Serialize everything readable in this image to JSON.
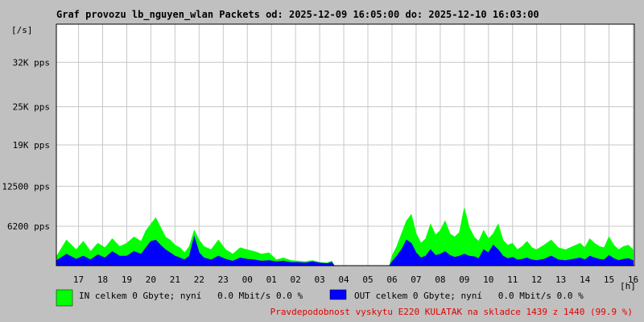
{
  "chart_data": {
    "type": "area",
    "title": "Graf provozu lb_nguyen_wlan Packets od: 2025-12-09 16:05:00 do: 2025-12-10 16:03:00",
    "ylabel": "[/s]",
    "xlabel": "[h]",
    "ylim": [
      0,
      38000
    ],
    "y_ticks": [
      {
        "value": 6200,
        "label": "6200 pps"
      },
      {
        "value": 12500,
        "label": "12500 pps"
      },
      {
        "value": 19000,
        "label": "19K pps"
      },
      {
        "value": 25000,
        "label": "25K pps"
      },
      {
        "value": 32000,
        "label": "32K pps"
      }
    ],
    "x_ticks": [
      {
        "value": 17,
        "label": "17"
      },
      {
        "value": 18,
        "label": "18"
      },
      {
        "value": 19,
        "label": "19"
      },
      {
        "value": 20,
        "label": "20"
      },
      {
        "value": 21,
        "label": "21"
      },
      {
        "value": 22,
        "label": "22"
      },
      {
        "value": 23,
        "label": "23"
      },
      {
        "value": 24,
        "label": "00"
      },
      {
        "value": 25,
        "label": "01"
      },
      {
        "value": 26,
        "label": "02"
      },
      {
        "value": 27,
        "label": "03"
      },
      {
        "value": 28,
        "label": "04"
      },
      {
        "value": 29,
        "label": "05"
      },
      {
        "value": 30,
        "label": "06"
      },
      {
        "value": 31,
        "label": "07"
      },
      {
        "value": 32,
        "label": "08"
      },
      {
        "value": 33,
        "label": "09"
      },
      {
        "value": 34,
        "label": "10"
      },
      {
        "value": 35,
        "label": "11"
      },
      {
        "value": 36,
        "label": "12"
      },
      {
        "value": 37,
        "label": "13"
      },
      {
        "value": 38,
        "label": "14"
      },
      {
        "value": 39,
        "label": "15"
      },
      {
        "value": 40,
        "label": "16"
      }
    ],
    "xlim": [
      16.08,
      40.05
    ],
    "grid": true,
    "legend_position": "bottom-left",
    "series": [
      {
        "name": "IN",
        "color": "#00ff00",
        "x": [
          16.1,
          16.5,
          16.9,
          17.2,
          17.5,
          17.8,
          18.1,
          18.4,
          18.7,
          19.0,
          19.3,
          19.6,
          19.8,
          20.0,
          20.2,
          20.4,
          20.6,
          20.8,
          21.0,
          21.2,
          21.4,
          21.6,
          21.8,
          22.0,
          22.2,
          22.5,
          22.8,
          23.1,
          23.4,
          23.7,
          24.0,
          24.3,
          24.6,
          24.9,
          25.2,
          25.5,
          25.8,
          26.1,
          26.4,
          26.7,
          27.0,
          27.3,
          27.5,
          27.6,
          29.9,
          30.0,
          30.2,
          30.4,
          30.6,
          30.8,
          31.0,
          31.2,
          31.4,
          31.6,
          31.8,
          32.0,
          32.2,
          32.4,
          32.6,
          32.8,
          33.0,
          33.2,
          33.4,
          33.6,
          33.8,
          34.0,
          34.2,
          34.4,
          34.6,
          34.8,
          35.0,
          35.2,
          35.4,
          35.6,
          35.8,
          36.0,
          36.3,
          36.6,
          36.9,
          37.2,
          37.5,
          37.8,
          38.0,
          38.2,
          38.4,
          38.6,
          38.8,
          39.0,
          39.2,
          39.4,
          39.6,
          39.8,
          40.0
        ],
        "values": [
          1500,
          4000,
          2500,
          3800,
          2200,
          3500,
          2800,
          4200,
          3000,
          3500,
          4500,
          3800,
          5500,
          6500,
          7500,
          6000,
          4500,
          4000,
          3200,
          2800,
          2000,
          3000,
          5500,
          4000,
          3000,
          2500,
          4000,
          2500,
          1800,
          2800,
          2500,
          2200,
          1800,
          2000,
          900,
          1200,
          800,
          700,
          600,
          800,
          500,
          400,
          700,
          0,
          0,
          1500,
          3000,
          5000,
          7000,
          8000,
          5000,
          3500,
          4200,
          6500,
          4800,
          5500,
          7000,
          5000,
          4500,
          5200,
          9000,
          6000,
          4500,
          3800,
          5500,
          4200,
          5000,
          6500,
          4000,
          3200,
          3500,
          2500,
          3000,
          3800,
          2800,
          2500,
          3200,
          4000,
          2800,
          2500,
          3000,
          3500,
          2800,
          4200,
          3500,
          3000,
          2800,
          4500,
          3200,
          2500,
          3000,
          3200,
          2500
        ]
      },
      {
        "name": "OUT",
        "color": "#0000ff",
        "x": [
          16.1,
          16.5,
          16.9,
          17.2,
          17.5,
          17.8,
          18.1,
          18.4,
          18.7,
          19.0,
          19.3,
          19.6,
          19.8,
          20.0,
          20.2,
          20.4,
          20.6,
          20.8,
          21.0,
          21.2,
          21.4,
          21.6,
          21.8,
          22.0,
          22.2,
          22.5,
          22.8,
          23.1,
          23.4,
          23.7,
          24.0,
          24.3,
          24.6,
          24.9,
          25.2,
          25.5,
          25.8,
          26.1,
          26.4,
          26.7,
          27.0,
          27.3,
          27.5,
          27.6,
          29.9,
          30.0,
          30.2,
          30.4,
          30.6,
          30.8,
          31.0,
          31.2,
          31.4,
          31.6,
          31.8,
          32.0,
          32.2,
          32.4,
          32.6,
          32.8,
          33.0,
          33.2,
          33.4,
          33.6,
          33.8,
          34.0,
          34.2,
          34.4,
          34.6,
          34.8,
          35.0,
          35.2,
          35.4,
          35.6,
          35.8,
          36.0,
          36.3,
          36.6,
          36.9,
          37.2,
          37.5,
          37.8,
          38.0,
          38.2,
          38.4,
          38.6,
          38.8,
          39.0,
          39.2,
          39.4,
          39.6,
          39.8,
          40.0
        ],
        "values": [
          800,
          1800,
          1000,
          1500,
          900,
          1700,
          1200,
          2200,
          1500,
          1500,
          2200,
          1800,
          2800,
          3800,
          4000,
          3200,
          2500,
          2000,
          1500,
          1200,
          900,
          1500,
          4500,
          2000,
          1200,
          900,
          1500,
          1000,
          700,
          1200,
          1000,
          900,
          700,
          800,
          600,
          700,
          500,
          500,
          400,
          600,
          400,
          300,
          500,
          0,
          0,
          600,
          1500,
          2500,
          4000,
          3500,
          2000,
          1200,
          1500,
          2500,
          1600,
          1800,
          2200,
          1600,
          1300,
          1500,
          1800,
          1500,
          1400,
          1100,
          2500,
          2000,
          3200,
          2500,
          1500,
          1100,
          1300,
          900,
          1000,
          1200,
          900,
          800,
          1000,
          1500,
          900,
          800,
          1000,
          1200,
          900,
          1500,
          1200,
          1000,
          900,
          1600,
          1100,
          800,
          1000,
          1100,
          800
        ]
      }
    ],
    "legend": [
      {
        "label": "IN celkem 0 Gbyte; nyní   0.0 Mbit/s 0.0 %",
        "color": "#00ff00"
      },
      {
        "label": "OUT celkem 0 Gbyte; nyní   0.0 Mbit/s 0.0 %",
        "color": "#0000ff"
      }
    ],
    "annotation": "Pravdepodobnost vyskytu E220 KULATAK na skladce 1439 z 1440 (99.9 %)"
  },
  "colors": {
    "background": "#c0c0c0",
    "plot": "#ffffff",
    "grid": "#c8c8c8",
    "annotation": "#e00000"
  }
}
